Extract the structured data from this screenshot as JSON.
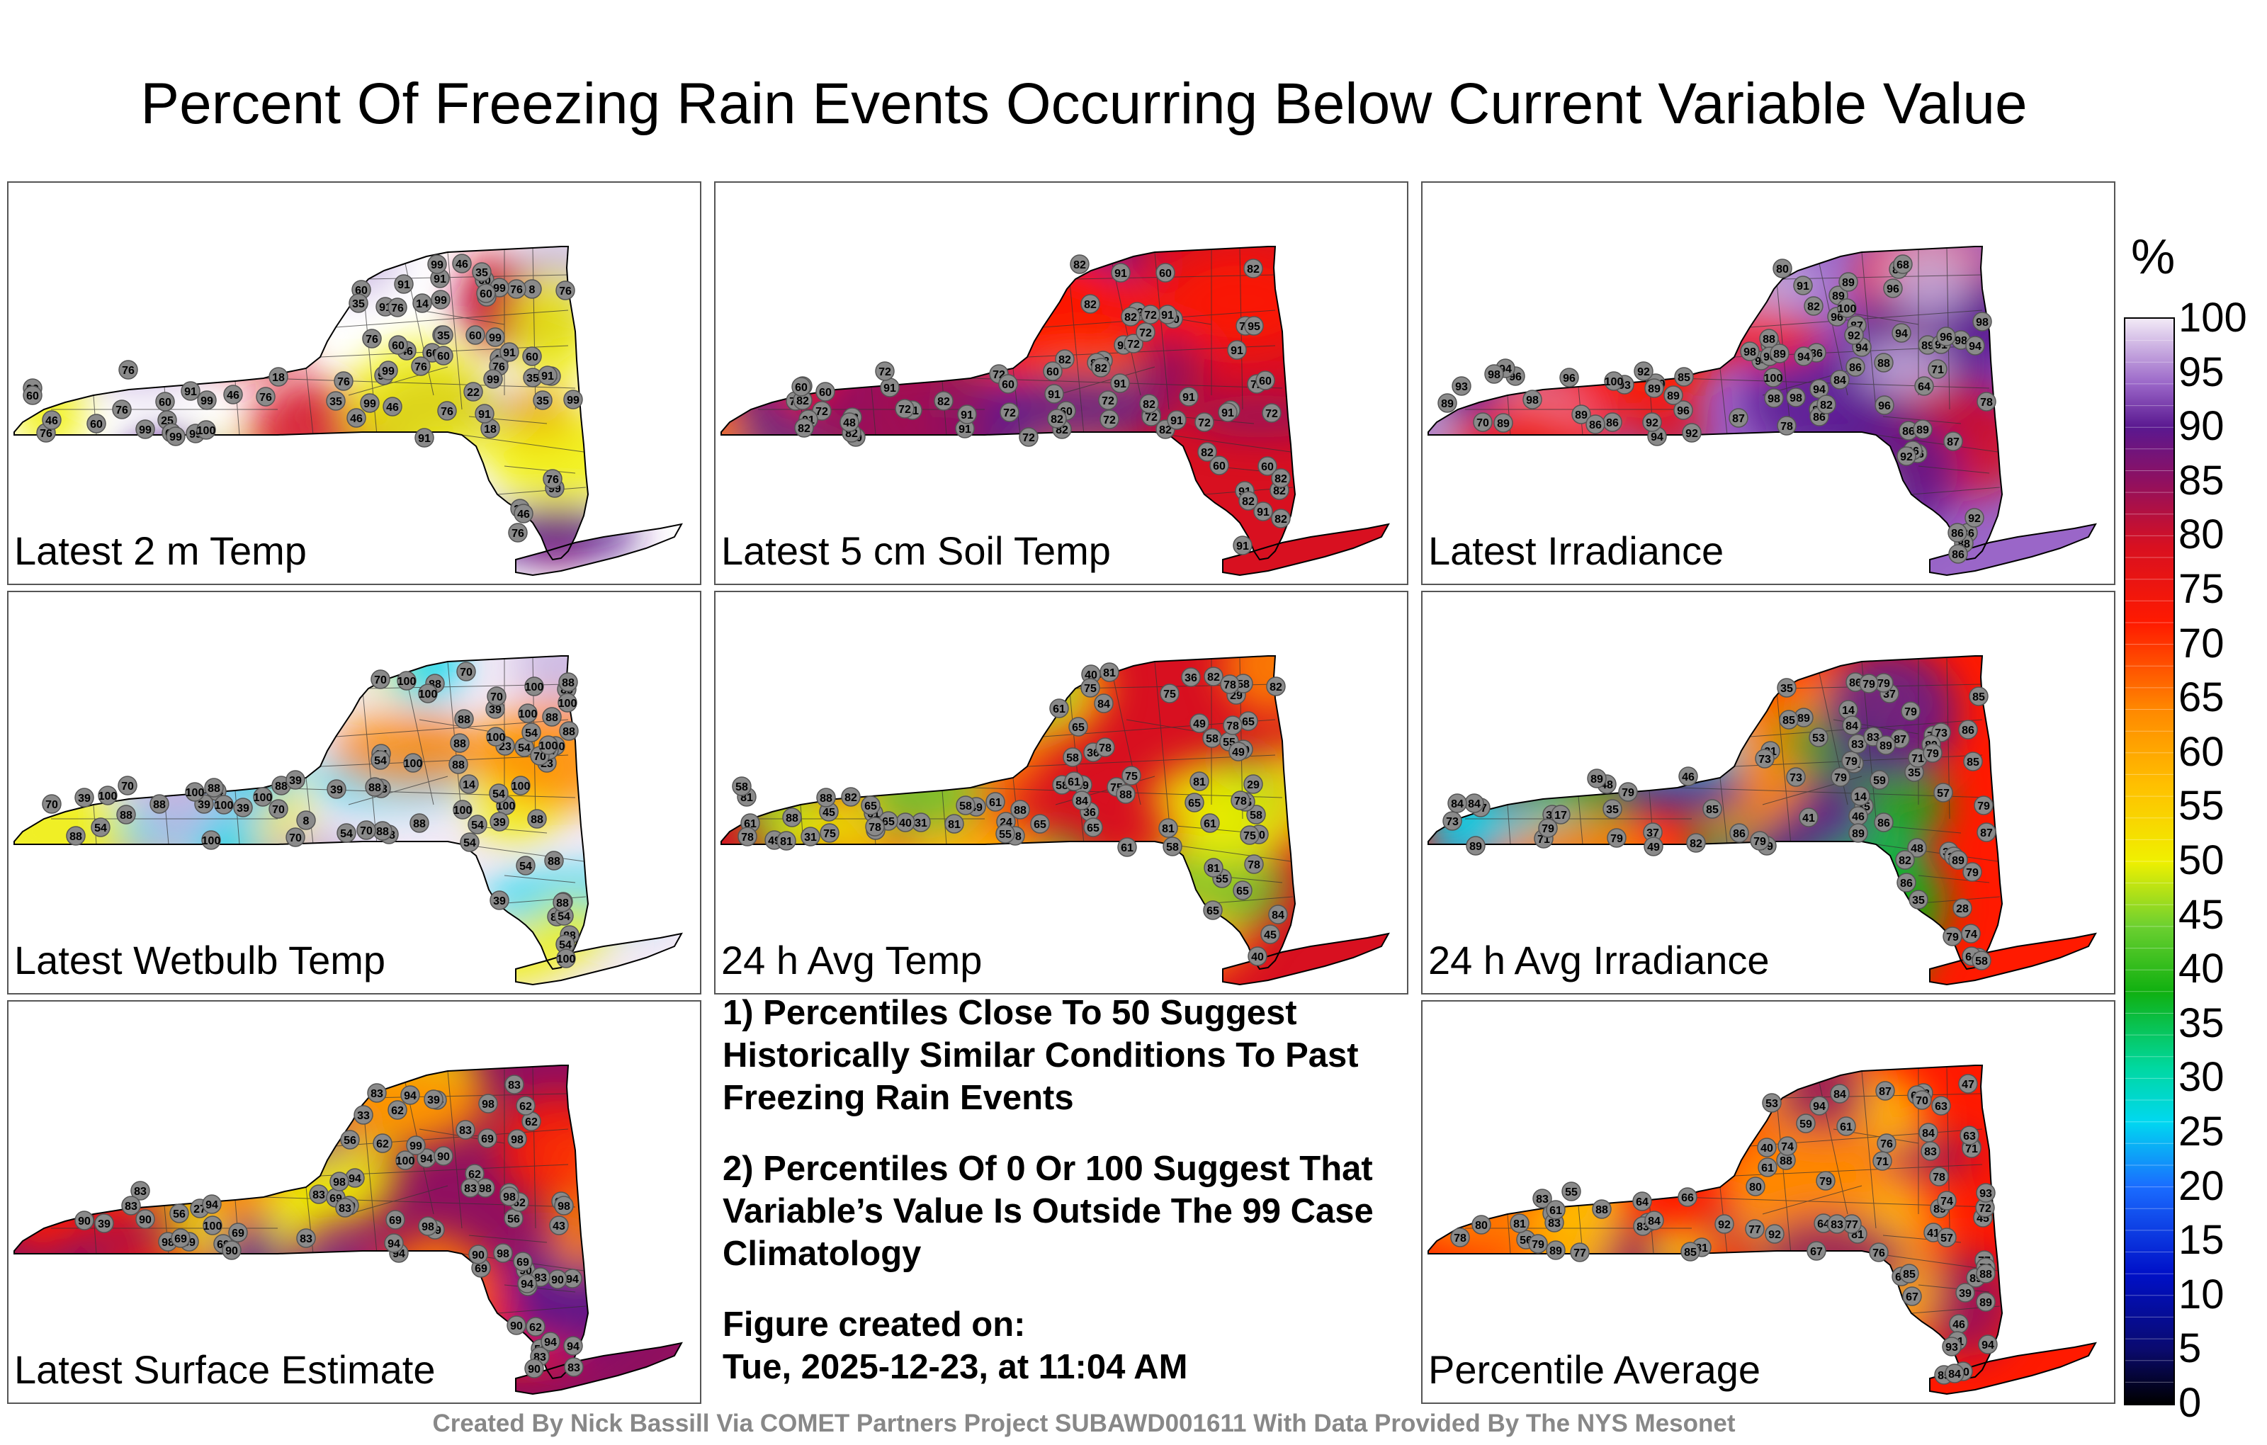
{
  "title": "Percent Of Freezing Rain Events Occurring Below Current Variable Value",
  "panels": [
    {
      "label": "Latest 2 m Temp",
      "station_values": [
        18,
        8,
        14,
        46,
        18,
        22,
        25,
        76,
        99,
        76,
        46,
        99,
        91,
        76,
        60,
        35,
        46,
        60,
        76,
        91,
        76,
        99,
        60,
        22,
        60,
        91,
        99,
        60,
        76,
        46,
        99,
        91,
        99,
        60,
        60,
        99,
        76,
        60,
        35,
        99,
        99,
        76,
        46,
        76,
        35,
        60,
        91,
        60,
        76,
        35,
        99,
        35,
        46,
        99,
        60,
        46,
        35,
        46,
        76,
        76,
        91,
        99,
        99,
        60,
        76,
        99,
        100,
        99,
        91,
        99,
        35,
        76,
        60,
        91
      ]
    },
    {
      "label": "Latest 5 cm Soil Temp",
      "station_values": [
        60,
        82,
        91,
        72,
        82,
        91,
        96,
        72,
        82,
        72,
        91,
        72,
        60,
        82,
        82,
        91,
        91,
        82,
        72,
        82,
        91,
        72,
        60,
        82,
        91,
        82,
        91,
        72,
        82,
        72,
        82,
        72,
        72,
        60,
        72,
        82,
        72,
        82,
        91,
        60,
        82,
        82,
        72,
        91,
        60,
        91,
        82,
        72,
        72,
        91,
        60,
        82,
        82,
        72,
        91,
        72,
        82,
        82,
        60,
        60,
        72,
        48,
        82,
        72,
        60,
        91,
        60,
        91,
        95,
        72,
        91,
        91,
        82
      ]
    },
    {
      "label": "Latest Irradiance",
      "station_values": [
        96,
        89,
        86,
        94,
        94,
        92,
        89,
        82,
        86,
        87,
        98,
        96,
        96,
        100,
        87,
        98,
        89,
        96,
        78,
        86,
        89,
        94,
        86,
        88,
        86,
        91,
        89,
        100,
        93,
        94,
        88,
        86,
        96,
        89,
        92,
        86,
        89,
        94,
        98,
        89,
        98,
        87,
        94,
        96,
        98,
        84,
        86,
        88,
        91,
        89,
        78,
        100,
        92,
        93,
        96,
        86,
        85,
        94,
        88,
        98,
        86,
        92,
        100,
        82,
        71,
        92,
        86,
        89,
        98,
        70,
        86,
        80,
        96,
        94,
        68,
        92,
        64,
        89
      ]
    },
    {
      "label": "Latest Wetbulb Temp",
      "station_values": [
        14,
        23,
        8,
        14,
        88,
        23,
        39,
        70,
        88,
        54,
        39,
        54,
        54,
        88,
        70,
        39,
        54,
        88,
        23,
        54,
        100,
        88,
        70,
        88,
        54,
        88,
        39,
        88,
        100,
        54,
        88,
        70,
        100,
        100,
        54,
        70,
        88,
        100,
        88,
        39,
        54,
        88,
        100,
        54,
        39,
        54,
        70,
        88,
        100,
        100,
        88,
        100,
        88,
        100,
        70,
        88,
        54,
        100,
        100,
        54,
        88,
        39,
        70,
        100,
        88,
        88,
        100,
        88,
        100,
        70,
        100,
        88,
        100,
        39,
        54,
        100,
        88
      ]
    },
    {
      "label": "24 h Avg Temp",
      "station_values": [
        36,
        29,
        29,
        49,
        36,
        24,
        58,
        40,
        36,
        40,
        65,
        58,
        31,
        31,
        40,
        55,
        78,
        49,
        55,
        40,
        49,
        45,
        55,
        45,
        81,
        58,
        61,
        58,
        58,
        49,
        49,
        65,
        82,
        82,
        84,
        75,
        61,
        61,
        65,
        49,
        58,
        78,
        81,
        65,
        84,
        82,
        65,
        61,
        65,
        58,
        75,
        58,
        61,
        65,
        88,
        78,
        81,
        75,
        78,
        65,
        75,
        55,
        78,
        78,
        81,
        58,
        61,
        61,
        75,
        81,
        75,
        81,
        65,
        78,
        78,
        84,
        88,
        88,
        81,
        88
      ]
    },
    {
      "label": "24 h Avg Irradiance",
      "station_values": [
        35,
        35,
        35,
        37,
        28,
        38,
        35,
        38,
        37,
        41,
        35,
        38,
        49,
        21,
        14,
        14,
        46,
        48,
        57,
        53,
        71,
        73,
        46,
        48,
        59,
        71,
        79,
        79,
        74,
        79,
        64,
        71,
        79,
        85,
        86,
        79,
        82,
        89,
        79,
        73,
        77,
        79,
        79,
        83,
        79,
        84,
        85,
        87,
        89,
        79,
        73,
        79,
        82,
        73,
        79,
        83,
        79,
        89,
        84,
        79,
        84,
        86,
        87,
        85,
        17,
        86,
        89,
        89,
        86,
        89,
        89,
        79,
        64,
        58,
        85,
        86
      ]
    },
    {
      "label": "Latest Surface Estimate",
      "station_values": [
        34,
        39,
        27,
        33,
        62,
        90,
        83,
        94,
        56,
        69,
        83,
        39,
        62,
        94,
        90,
        69,
        62,
        69,
        83,
        69,
        83,
        39,
        90,
        83,
        94,
        56,
        83,
        98,
        69,
        83,
        98,
        62,
        94,
        94,
        90,
        98,
        83,
        56,
        94,
        94,
        90,
        98,
        69,
        83,
        98,
        69,
        94,
        69,
        43,
        56,
        83,
        62,
        90,
        98,
        94,
        69,
        56,
        62,
        69,
        90,
        94,
        90,
        83,
        62,
        98,
        98,
        94,
        90,
        94,
        100,
        83,
        98,
        99,
        100
      ]
    },
    {
      "label": "Percentile Average",
      "station_values": [
        45,
        47,
        41,
        39,
        40,
        72,
        59,
        79,
        46,
        55,
        61,
        64,
        77,
        67,
        63,
        56,
        61,
        66,
        53,
        80,
        80,
        70,
        83,
        88,
        84,
        77,
        89,
        85,
        85,
        92,
        84,
        91,
        81,
        79,
        77,
        84,
        83,
        89,
        71,
        76,
        63,
        64,
        81,
        81,
        88,
        88,
        70,
        78,
        67,
        74,
        79,
        85,
        89,
        83,
        87,
        88,
        83,
        69,
        78,
        77,
        74,
        61,
        57,
        64,
        76,
        83,
        85,
        84,
        79,
        93,
        89,
        94,
        92,
        93,
        94,
        71,
        84
      ]
    }
  ],
  "notes": {
    "note1": "1) Percentiles Close To 50 Suggest Historically Similar Conditions To Past Freezing Rain Events",
    "note2": "2) Percentiles Of 0 Or 100 Suggest That Variable’s Value Is Outside The 99 Case Climatology",
    "created_label": "Figure created on:",
    "created_value": "Tue, 2025-12-23, at 11:04 AM"
  },
  "credit": "Created By Nick Bassill Via COMET Partners Project SUBAWD001611 With Data Provided By The NYS Mesonet",
  "chart_data": {
    "type": "heatmap",
    "title": "Percent Of Freezing Rain Events Occurring Below Current Variable Value",
    "colorbar": {
      "unit": "%",
      "range": [
        0,
        100
      ],
      "ticks": [
        "100",
        "95",
        "90",
        "85",
        "80",
        "75",
        "70",
        "65",
        "60",
        "55",
        "50",
        "45",
        "40",
        "35",
        "30",
        "25",
        "20",
        "15",
        "10",
        "5",
        "0"
      ],
      "stops": [
        {
          "value": 0,
          "color": "#000000"
        },
        {
          "value": 5,
          "color": "#0a0a6e"
        },
        {
          "value": 12,
          "color": "#0010c8"
        },
        {
          "value": 20,
          "color": "#1a6cff"
        },
        {
          "value": 26,
          "color": "#00d8f0"
        },
        {
          "value": 31,
          "color": "#00d8a0"
        },
        {
          "value": 38,
          "color": "#10b010"
        },
        {
          "value": 44,
          "color": "#6cd030"
        },
        {
          "value": 50,
          "color": "#f0f000"
        },
        {
          "value": 57,
          "color": "#ffc000"
        },
        {
          "value": 64,
          "color": "#ff8800"
        },
        {
          "value": 72,
          "color": "#ff1a00"
        },
        {
          "value": 79,
          "color": "#d81020"
        },
        {
          "value": 85,
          "color": "#901060"
        },
        {
          "value": 90,
          "color": "#5a1890"
        },
        {
          "value": 94,
          "color": "#9a66c8"
        },
        {
          "value": 100,
          "color": "#f2eaf6"
        }
      ]
    },
    "maps": [
      "Latest 2 m Temp",
      "Latest 5 cm Soil Temp",
      "Latest Irradiance",
      "Latest Wetbulb Temp",
      "24 h Avg Temp",
      "24 h Avg Irradiance",
      "Latest Surface Estimate",
      "Percentile Average"
    ]
  }
}
